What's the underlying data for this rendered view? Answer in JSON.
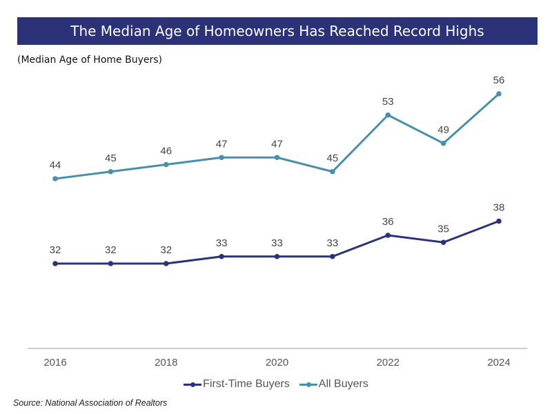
{
  "title": "The Median Age of Homeowners Has Reached Record Highs",
  "subtitle": "(Median Age of Home Buyers)",
  "source": "Source: National Association of Realtors",
  "chart_data": {
    "type": "line",
    "x": [
      2016,
      2017,
      2018,
      2019,
      2020,
      2021,
      2022,
      2023,
      2024
    ],
    "x_tick_labels": [
      "2016",
      "2018",
      "2020",
      "2022",
      "2024"
    ],
    "series": [
      {
        "name": "First-Time Buyers",
        "color": "#2b3278",
        "values": [
          32,
          32,
          32,
          33,
          33,
          33,
          36,
          35,
          38
        ]
      },
      {
        "name": "All Buyers",
        "color": "#4a8fa8",
        "values": [
          44,
          45,
          46,
          47,
          47,
          45,
          53,
          49,
          56
        ]
      }
    ],
    "ylim": [
      20,
      58
    ],
    "grid": false,
    "data_labels": true,
    "legend_position": "bottom"
  }
}
